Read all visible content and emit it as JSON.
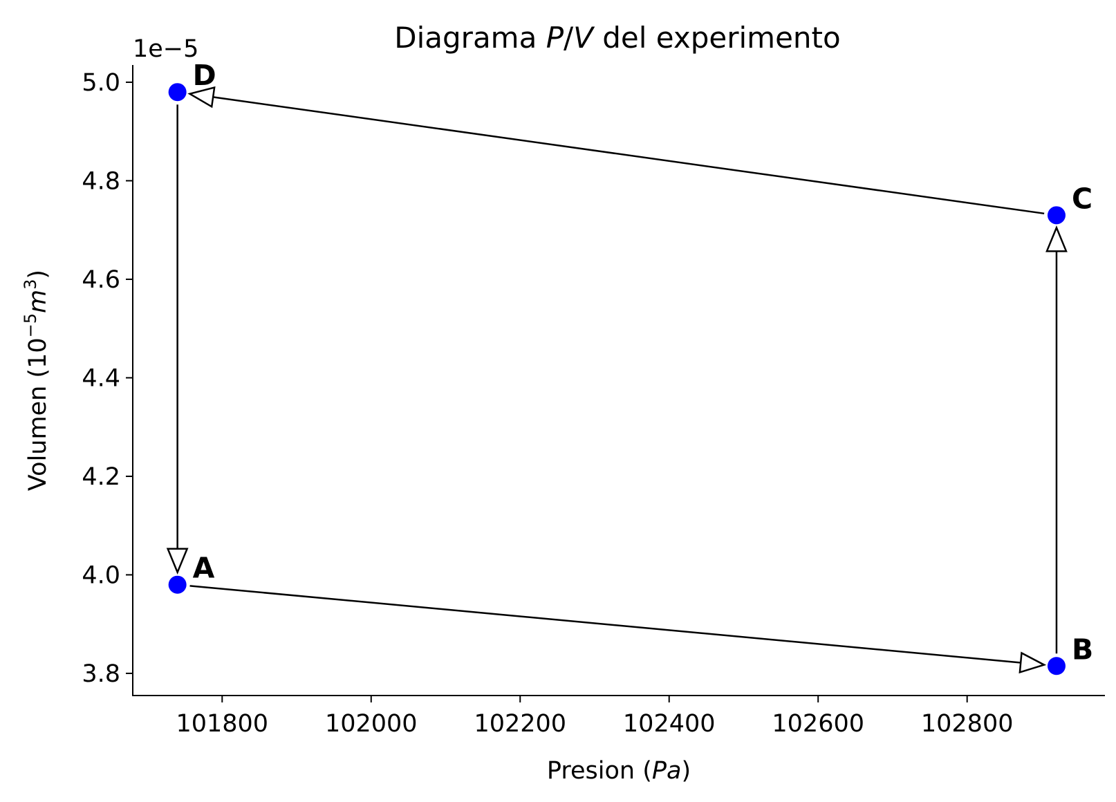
{
  "chart_data": {
    "type": "scatter",
    "title": "Diagrama P/V del experimento",
    "xlabel": "Presion (Pa)",
    "ylabel": "Volumen (10^-5 m^3)",
    "offset_text": "1e−5",
    "xlim": [
      101680,
      102985
    ],
    "ylim": [
      3.755,
      5.035
    ],
    "x_ticks": [
      101800,
      102000,
      102200,
      102400,
      102600,
      102800
    ],
    "y_ticks": [
      3.8,
      4.0,
      4.2,
      4.4,
      4.6,
      4.8,
      5.0
    ],
    "x_tick_labels": [
      "101800",
      "102000",
      "102200",
      "102400",
      "102600",
      "102800"
    ],
    "y_tick_labels": [
      "3.8",
      "4.0",
      "4.2",
      "4.4",
      "4.6",
      "4.8",
      "5.0"
    ],
    "points": [
      {
        "label": "A",
        "x": 101740,
        "y": 3.98
      },
      {
        "label": "B",
        "x": 102920,
        "y": 3.815
      },
      {
        "label": "C",
        "x": 102920,
        "y": 4.73
      },
      {
        "label": "D",
        "x": 101740,
        "y": 4.98
      }
    ],
    "arrows": [
      {
        "from": "A",
        "to": "B"
      },
      {
        "from": "B",
        "to": "C"
      },
      {
        "from": "C",
        "to": "D"
      },
      {
        "from": "D",
        "to": "A"
      }
    ],
    "point_color": "#0000ff",
    "arrow_color": "#000000",
    "grid": false
  }
}
